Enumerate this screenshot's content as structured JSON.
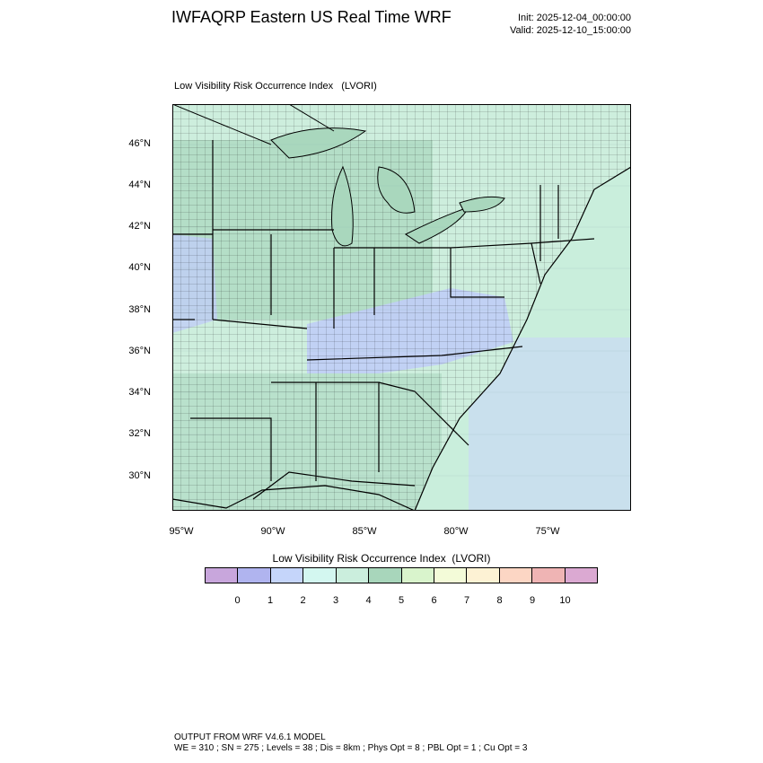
{
  "header": {
    "title": "IWFAQRP Eastern US Real Time WRF",
    "init": "Init: 2025-12-04_00:00:00",
    "valid": "Valid: 2025-12-10_15:00:00"
  },
  "map": {
    "subtitle": "Low Visibility Risk Occurrence Index   (LVORI)",
    "lat_labels": [
      "46°N",
      "44°N",
      "42°N",
      "40°N",
      "38°N",
      "36°N",
      "34°N",
      "32°N",
      "30°N"
    ],
    "lon_labels": [
      "95°W",
      "90°W",
      "85°W",
      "80°W",
      "75°W"
    ],
    "colors": {
      "water": "#c9d6fb",
      "land_base": "#cdeedd",
      "land_mid": "#a9d7bd",
      "border": "#000000"
    }
  },
  "legend": {
    "title": "Low Visibility Risk Occurrence Index  (LVORI)",
    "colors": [
      "#c8a6dc",
      "#b0b4ef",
      "#c5d5fa",
      "#d3f7f0",
      "#cbeedd",
      "#a8d6bb",
      "#d9f4cc",
      "#f3fbd8",
      "#fdf2d4",
      "#fcd6c4",
      "#efb4b4",
      "#dba9d2"
    ],
    "ticks": [
      "0",
      "1",
      "2",
      "3",
      "4",
      "5",
      "6",
      "7",
      "8",
      "9",
      "10"
    ]
  },
  "footer": {
    "line1": "OUTPUT FROM WRF V4.6.1 MODEL",
    "line2": "WE = 310 ; SN = 275 ; Levels = 38 ; Dis = 8km ; Phys Opt = 8 ; PBL Opt = 1 ; Cu Opt = 3"
  }
}
